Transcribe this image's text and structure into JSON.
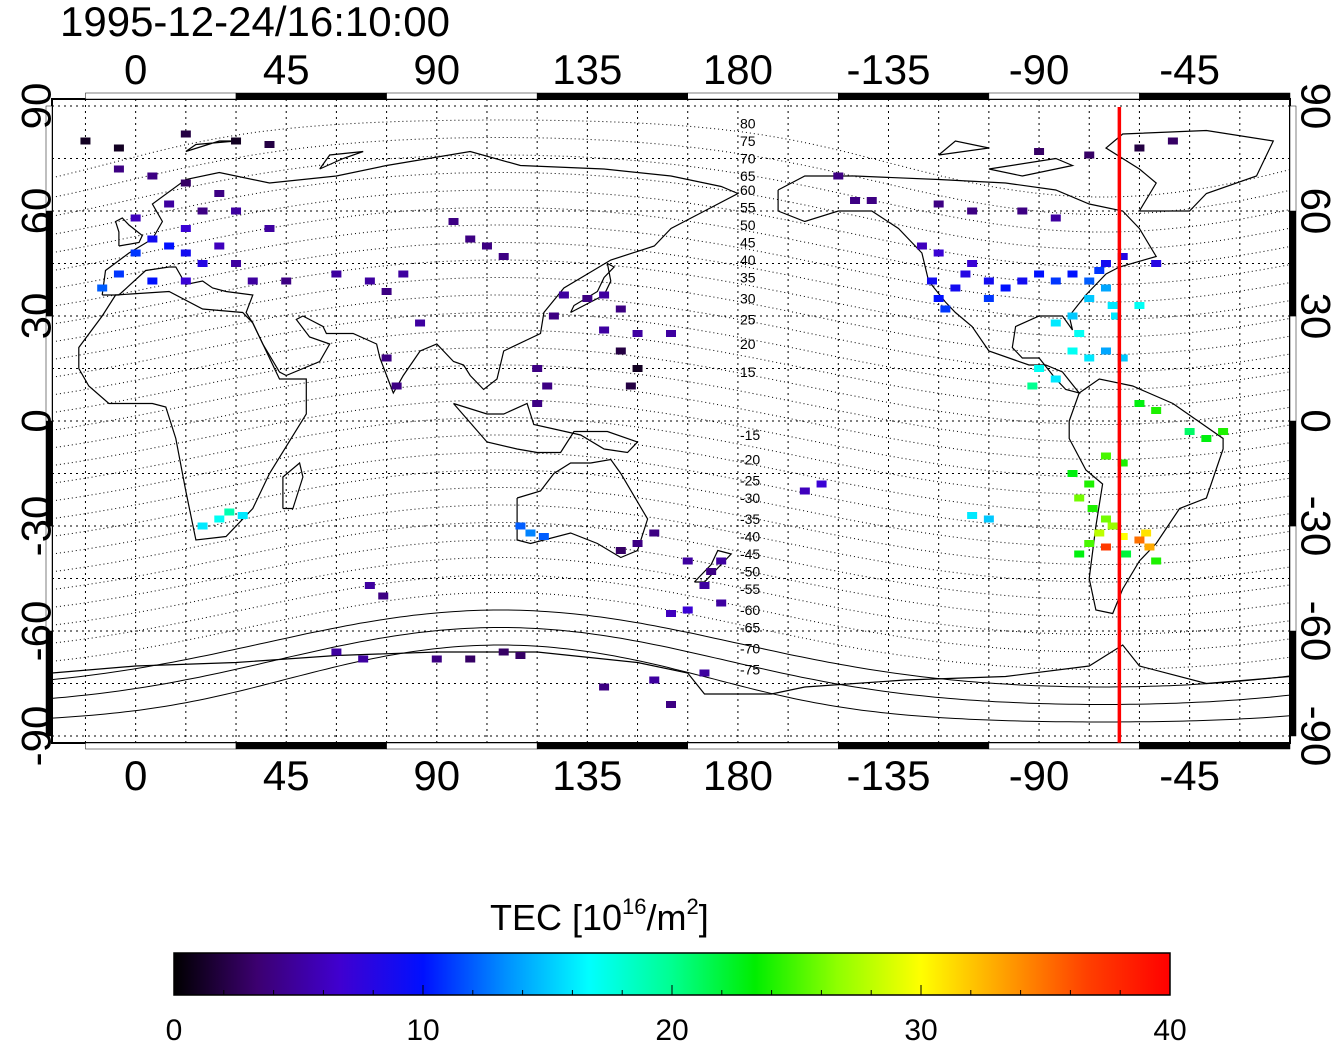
{
  "title": "1995-12-24/16:10:00",
  "colorbar": {
    "label_prefix": "TEC  [10",
    "label_sup1": "16",
    "label_mid": "/m",
    "label_sup2": "2",
    "label_suffix": "]",
    "min": 0,
    "max": 40,
    "tick_values": [
      0,
      10,
      20,
      30,
      40
    ],
    "tick_labels": [
      "0",
      "10",
      "20",
      "30",
      "40"
    ],
    "stops": [
      "#000000",
      "#3c0070",
      "#4000d0",
      "#0010ff",
      "#0090ff",
      "#00ffff",
      "#00ff90",
      "#00ee00",
      "#90ff00",
      "#ffff00",
      "#ffa000",
      "#ff4000",
      "#ff0000"
    ]
  },
  "map": {
    "lon_range": [
      -25,
      345
    ],
    "lat_range": [
      -92,
      92
    ],
    "lon_ticks": [
      0,
      45,
      90,
      135,
      180,
      225,
      270,
      315
    ],
    "lon_tick_labels": [
      "0",
      "45",
      "90",
      "135",
      "180",
      "-135",
      "-90",
      "-45"
    ],
    "lat_ticks": [
      90,
      60,
      30,
      0,
      -30,
      -60,
      -90
    ],
    "lat_tick_labels": [
      "90",
      "60",
      "30",
      "0",
      "-30",
      "-60",
      "-90"
    ],
    "grid": true,
    "red_line_lon": 294,
    "red_line_color": "#ff0000",
    "contour_labels": [
      "80",
      "75",
      "70",
      "65",
      "60",
      "55",
      "50",
      "45",
      "40",
      "35",
      "30",
      "25",
      "20",
      "15",
      "-15",
      "-20",
      "-25",
      "-30",
      "-35",
      "-40",
      "-45",
      "-50",
      "-55",
      "-60",
      "-65",
      "-70",
      "-75"
    ],
    "contour_label_lats": [
      85,
      80,
      75,
      70,
      66,
      61,
      56,
      51,
      46,
      41,
      35,
      29,
      22,
      14,
      -4,
      -11,
      -17,
      -22,
      -28,
      -33,
      -38,
      -43,
      -48,
      -54,
      -59,
      -65,
      -71
    ]
  },
  "chart_data": {
    "type": "scatter",
    "title": "1995-12-24/16:10:00",
    "xlabel": "",
    "ylabel": "",
    "colorbar_label": "TEC  [10^16/m^2]",
    "xlim": [
      -25,
      345
    ],
    "ylim": [
      -92,
      92
    ],
    "clim": [
      0,
      40
    ],
    "points": [
      {
        "lon": -15,
        "lat": 80,
        "tec": 1
      },
      {
        "lon": -5,
        "lat": 78,
        "tec": 1
      },
      {
        "lon": 15,
        "lat": 82,
        "tec": 2
      },
      {
        "lon": 30,
        "lat": 80,
        "tec": 1
      },
      {
        "lon": 40,
        "lat": 79,
        "tec": 2
      },
      {
        "lon": -5,
        "lat": 72,
        "tec": 4
      },
      {
        "lon": 5,
        "lat": 70,
        "tec": 4
      },
      {
        "lon": 15,
        "lat": 68,
        "tec": 3
      },
      {
        "lon": 25,
        "lat": 65,
        "tec": 4
      },
      {
        "lon": 30,
        "lat": 60,
        "tec": 5
      },
      {
        "lon": 10,
        "lat": 62,
        "tec": 5
      },
      {
        "lon": 20,
        "lat": 60,
        "tec": 4
      },
      {
        "lon": 0,
        "lat": 58,
        "tec": 6
      },
      {
        "lon": 15,
        "lat": 55,
        "tec": 7
      },
      {
        "lon": 5,
        "lat": 52,
        "tec": 9
      },
      {
        "lon": 10,
        "lat": 50,
        "tec": 10
      },
      {
        "lon": 15,
        "lat": 48,
        "tec": 9
      },
      {
        "lon": 0,
        "lat": 48,
        "tec": 11
      },
      {
        "lon": 20,
        "lat": 45,
        "tec": 8
      },
      {
        "lon": 25,
        "lat": 50,
        "tec": 6
      },
      {
        "lon": -5,
        "lat": 42,
        "tec": 11
      },
      {
        "lon": -10,
        "lat": 38,
        "tec": 12
      },
      {
        "lon": 5,
        "lat": 40,
        "tec": 10
      },
      {
        "lon": 15,
        "lat": 40,
        "tec": 7
      },
      {
        "lon": 30,
        "lat": 45,
        "tec": 5
      },
      {
        "lon": 40,
        "lat": 55,
        "tec": 5
      },
      {
        "lon": 35,
        "lat": 40,
        "tec": 5
      },
      {
        "lon": 45,
        "lat": 40,
        "tec": 4
      },
      {
        "lon": 60,
        "lat": 42,
        "tec": 5
      },
      {
        "lon": 70,
        "lat": 40,
        "tec": 5
      },
      {
        "lon": 75,
        "lat": 37,
        "tec": 4
      },
      {
        "lon": 80,
        "lat": 42,
        "tec": 5
      },
      {
        "lon": 100,
        "lat": 52,
        "tec": 4
      },
      {
        "lon": 105,
        "lat": 50,
        "tec": 4
      },
      {
        "lon": 110,
        "lat": 47,
        "tec": 4
      },
      {
        "lon": 95,
        "lat": 57,
        "tec": 4
      },
      {
        "lon": 85,
        "lat": 28,
        "tec": 5
      },
      {
        "lon": 75,
        "lat": 18,
        "tec": 4
      },
      {
        "lon": 78,
        "lat": 10,
        "tec": 4
      },
      {
        "lon": 125,
        "lat": 30,
        "tec": 4
      },
      {
        "lon": 128,
        "lat": 36,
        "tec": 5
      },
      {
        "lon": 135,
        "lat": 35,
        "tec": 4
      },
      {
        "lon": 140,
        "lat": 36,
        "tec": 5
      },
      {
        "lon": 145,
        "lat": 32,
        "tec": 4
      },
      {
        "lon": 140,
        "lat": 26,
        "tec": 5
      },
      {
        "lon": 150,
        "lat": 25,
        "tec": 5
      },
      {
        "lon": 160,
        "lat": 25,
        "tec": 5
      },
      {
        "lon": 145,
        "lat": 20,
        "tec": 2
      },
      {
        "lon": 150,
        "lat": 15,
        "tec": 1
      },
      {
        "lon": 148,
        "lat": 10,
        "tec": 2
      },
      {
        "lon": 120,
        "lat": 15,
        "tec": 4
      },
      {
        "lon": 123,
        "lat": 10,
        "tec": 4
      },
      {
        "lon": 120,
        "lat": 5,
        "tec": 4
      },
      {
        "lon": 115,
        "lat": -30,
        "tec": 12
      },
      {
        "lon": 118,
        "lat": -32,
        "tec": 13
      },
      {
        "lon": 122,
        "lat": -33,
        "tec": 12
      },
      {
        "lon": 145,
        "lat": -37,
        "tec": 3
      },
      {
        "lon": 150,
        "lat": -35,
        "tec": 4
      },
      {
        "lon": 155,
        "lat": -32,
        "tec": 4
      },
      {
        "lon": 165,
        "lat": -40,
        "tec": 5
      },
      {
        "lon": 172,
        "lat": -43,
        "tec": 4
      },
      {
        "lon": 175,
        "lat": -40,
        "tec": 5
      },
      {
        "lon": 170,
        "lat": -47,
        "tec": 5
      },
      {
        "lon": 160,
        "lat": -55,
        "tec": 6
      },
      {
        "lon": 165,
        "lat": -54,
        "tec": 7
      },
      {
        "lon": 175,
        "lat": -52,
        "tec": 5
      },
      {
        "lon": 25,
        "lat": -28,
        "tec": 17
      },
      {
        "lon": 28,
        "lat": -26,
        "tec": 19
      },
      {
        "lon": 32,
        "lat": -27,
        "tec": 16
      },
      {
        "lon": 20,
        "lat": -30,
        "tec": 16
      },
      {
        "lon": 70,
        "lat": -47,
        "tec": 5
      },
      {
        "lon": 74,
        "lat": -50,
        "tec": 4
      },
      {
        "lon": 60,
        "lat": -66,
        "tec": 5
      },
      {
        "lon": 68,
        "lat": -68,
        "tec": 5
      },
      {
        "lon": 90,
        "lat": -68,
        "tec": 4
      },
      {
        "lon": 100,
        "lat": -68,
        "tec": 3
      },
      {
        "lon": 110,
        "lat": -66,
        "tec": 3
      },
      {
        "lon": 115,
        "lat": -67,
        "tec": 3
      },
      {
        "lon": 140,
        "lat": -76,
        "tec": 4
      },
      {
        "lon": 155,
        "lat": -74,
        "tec": 5
      },
      {
        "lon": 160,
        "lat": -81,
        "tec": 4
      },
      {
        "lon": 170,
        "lat": -72,
        "tec": 5
      },
      {
        "lon": 200,
        "lat": -20,
        "tec": 6
      },
      {
        "lon": 205,
        "lat": -18,
        "tec": 7
      },
      {
        "lon": 250,
        "lat": -27,
        "tec": 16
      },
      {
        "lon": 255,
        "lat": -28,
        "tec": 15
      },
      {
        "lon": 220,
        "lat": 63,
        "tec": 4
      },
      {
        "lon": 210,
        "lat": 70,
        "tec": 4
      },
      {
        "lon": 215,
        "lat": 63,
        "tec": 4
      },
      {
        "lon": 240,
        "lat": 62,
        "tec": 4
      },
      {
        "lon": 250,
        "lat": 60,
        "tec": 4
      },
      {
        "lon": 265,
        "lat": 60,
        "tec": 4
      },
      {
        "lon": 275,
        "lat": 58,
        "tec": 5
      },
      {
        "lon": 270,
        "lat": 77,
        "tec": 3
      },
      {
        "lon": 285,
        "lat": 76,
        "tec": 3
      },
      {
        "lon": 300,
        "lat": 78,
        "tec": 2
      },
      {
        "lon": 310,
        "lat": 80,
        "tec": 3
      },
      {
        "lon": 235,
        "lat": 50,
        "tec": 6
      },
      {
        "lon": 240,
        "lat": 48,
        "tec": 7
      },
      {
        "lon": 238,
        "lat": 40,
        "tec": 9
      },
      {
        "lon": 240,
        "lat": 35,
        "tec": 10
      },
      {
        "lon": 242,
        "lat": 32,
        "tec": 11
      },
      {
        "lon": 245,
        "lat": 38,
        "tec": 9
      },
      {
        "lon": 248,
        "lat": 42,
        "tec": 8
      },
      {
        "lon": 250,
        "lat": 45,
        "tec": 7
      },
      {
        "lon": 255,
        "lat": 40,
        "tec": 9
      },
      {
        "lon": 255,
        "lat": 35,
        "tec": 11
      },
      {
        "lon": 260,
        "lat": 38,
        "tec": 10
      },
      {
        "lon": 265,
        "lat": 40,
        "tec": 9
      },
      {
        "lon": 270,
        "lat": 42,
        "tec": 10
      },
      {
        "lon": 275,
        "lat": 40,
        "tec": 11
      },
      {
        "lon": 280,
        "lat": 42,
        "tec": 10
      },
      {
        "lon": 285,
        "lat": 40,
        "tec": 12
      },
      {
        "lon": 288,
        "lat": 43,
        "tec": 11
      },
      {
        "lon": 290,
        "lat": 38,
        "tec": 14
      },
      {
        "lon": 285,
        "lat": 35,
        "tec": 15
      },
      {
        "lon": 292,
        "lat": 33,
        "tec": 16
      },
      {
        "lon": 290,
        "lat": 45,
        "tec": 9
      },
      {
        "lon": 295,
        "lat": 47,
        "tec": 8
      },
      {
        "lon": 305,
        "lat": 45,
        "tec": 8
      },
      {
        "lon": 300,
        "lat": 33,
        "tec": 17
      },
      {
        "lon": 293,
        "lat": 30,
        "tec": 16
      },
      {
        "lon": 280,
        "lat": 30,
        "tec": 15
      },
      {
        "lon": 275,
        "lat": 28,
        "tec": 16
      },
      {
        "lon": 282,
        "lat": 25,
        "tec": 17
      },
      {
        "lon": 280,
        "lat": 20,
        "tec": 17
      },
      {
        "lon": 285,
        "lat": 18,
        "tec": 16
      },
      {
        "lon": 290,
        "lat": 20,
        "tec": 14
      },
      {
        "lon": 295,
        "lat": 18,
        "tec": 15
      },
      {
        "lon": 270,
        "lat": 15,
        "tec": 17
      },
      {
        "lon": 275,
        "lat": 12,
        "tec": 16
      },
      {
        "lon": 268,
        "lat": 10,
        "tec": 20
      },
      {
        "lon": 300,
        "lat": 5,
        "tec": 23
      },
      {
        "lon": 305,
        "lat": 3,
        "tec": 24
      },
      {
        "lon": 315,
        "lat": -3,
        "tec": 21
      },
      {
        "lon": 320,
        "lat": -5,
        "tec": 23
      },
      {
        "lon": 325,
        "lat": -3,
        "tec": 24
      },
      {
        "lon": 290,
        "lat": -10,
        "tec": 25
      },
      {
        "lon": 295,
        "lat": -12,
        "tec": 24
      },
      {
        "lon": 280,
        "lat": -15,
        "tec": 23
      },
      {
        "lon": 285,
        "lat": -18,
        "tec": 24
      },
      {
        "lon": 282,
        "lat": -22,
        "tec": 26
      },
      {
        "lon": 286,
        "lat": -25,
        "tec": 24
      },
      {
        "lon": 290,
        "lat": -28,
        "tec": 26
      },
      {
        "lon": 288,
        "lat": -32,
        "tec": 28
      },
      {
        "lon": 292,
        "lat": -30,
        "tec": 27
      },
      {
        "lon": 285,
        "lat": -35,
        "tec": 25
      },
      {
        "lon": 295,
        "lat": -33,
        "tec": 30
      },
      {
        "lon": 300,
        "lat": -34,
        "tec": 35
      },
      {
        "lon": 302,
        "lat": -32,
        "tec": 31
      },
      {
        "lon": 303,
        "lat": -36,
        "tec": 33
      },
      {
        "lon": 290,
        "lat": -36,
        "tec": 37
      },
      {
        "lon": 296,
        "lat": -38,
        "tec": 22
      },
      {
        "lon": 305,
        "lat": -40,
        "tec": 24
      },
      {
        "lon": 282,
        "lat": -38,
        "tec": 23
      }
    ],
    "contours": "geomagnetic latitude lines, 5 degree spacing"
  }
}
